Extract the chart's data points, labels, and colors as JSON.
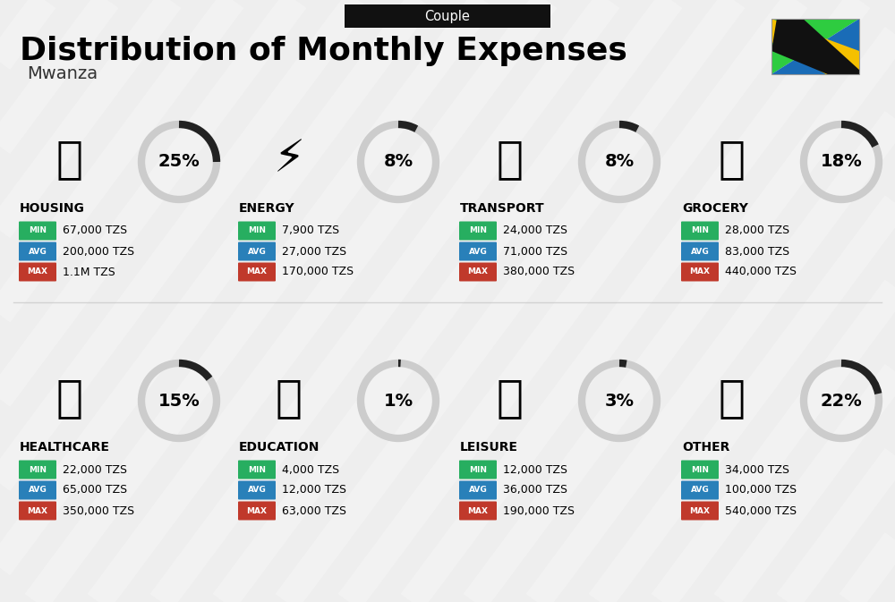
{
  "title": "Distribution of Monthly Expenses",
  "subtitle": "Mwanza",
  "label_top": "Couple",
  "bg_color": "#eeeeee",
  "categories": [
    {
      "name": "HOUSING",
      "pct": 25,
      "min": "67,000 TZS",
      "avg": "200,000 TZS",
      "max": "1.1M TZS",
      "row": 0,
      "col": 0
    },
    {
      "name": "ENERGY",
      "pct": 8,
      "min": "7,900 TZS",
      "avg": "27,000 TZS",
      "max": "170,000 TZS",
      "row": 0,
      "col": 1
    },
    {
      "name": "TRANSPORT",
      "pct": 8,
      "min": "24,000 TZS",
      "avg": "71,000 TZS",
      "max": "380,000 TZS",
      "row": 0,
      "col": 2
    },
    {
      "name": "GROCERY",
      "pct": 18,
      "min": "28,000 TZS",
      "avg": "83,000 TZS",
      "max": "440,000 TZS",
      "row": 0,
      "col": 3
    },
    {
      "name": "HEALTHCARE",
      "pct": 15,
      "min": "22,000 TZS",
      "avg": "65,000 TZS",
      "max": "350,000 TZS",
      "row": 1,
      "col": 0
    },
    {
      "name": "EDUCATION",
      "pct": 1,
      "min": "4,000 TZS",
      "avg": "12,000 TZS",
      "max": "63,000 TZS",
      "row": 1,
      "col": 1
    },
    {
      "name": "LEISURE",
      "pct": 3,
      "min": "12,000 TZS",
      "avg": "36,000 TZS",
      "max": "190,000 TZS",
      "row": 1,
      "col": 2
    },
    {
      "name": "OTHER",
      "pct": 22,
      "min": "34,000 TZS",
      "avg": "100,000 TZS",
      "max": "540,000 TZS",
      "row": 1,
      "col": 3
    }
  ],
  "min_color": "#27ae60",
  "avg_color": "#2980b9",
  "max_color": "#c0392b",
  "arc_dark": "#222222",
  "arc_light": "#cccccc",
  "icons": {
    "HOUSING": "🏙",
    "ENERGY": "⚡",
    "TRANSPORT": "🚌",
    "GROCERY": "🛒",
    "HEALTHCARE": "🩺",
    "EDUCATION": "🎓",
    "LEISURE": "🛍",
    "OTHER": "💰"
  }
}
